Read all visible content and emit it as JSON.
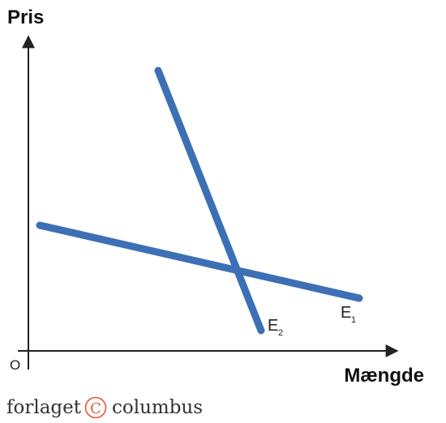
{
  "axes": {
    "y_label": "Pris",
    "x_label": "Mængde",
    "origin_label": "O"
  },
  "curves": [
    {
      "id": "E1",
      "letter": "E",
      "subscript": "1",
      "color": "#3d6fb5",
      "description": "flatter demand curve"
    },
    {
      "id": "E2",
      "letter": "E",
      "subscript": "2",
      "color": "#3d6fb5",
      "description": "steeper demand curve"
    }
  ],
  "publisher": {
    "word1": "forlaget",
    "word2": "columbus",
    "logo_symbol": "C",
    "logo_color": "#e2582e"
  },
  "colors": {
    "axis": "#222222",
    "curve": "#3d6fb5"
  }
}
